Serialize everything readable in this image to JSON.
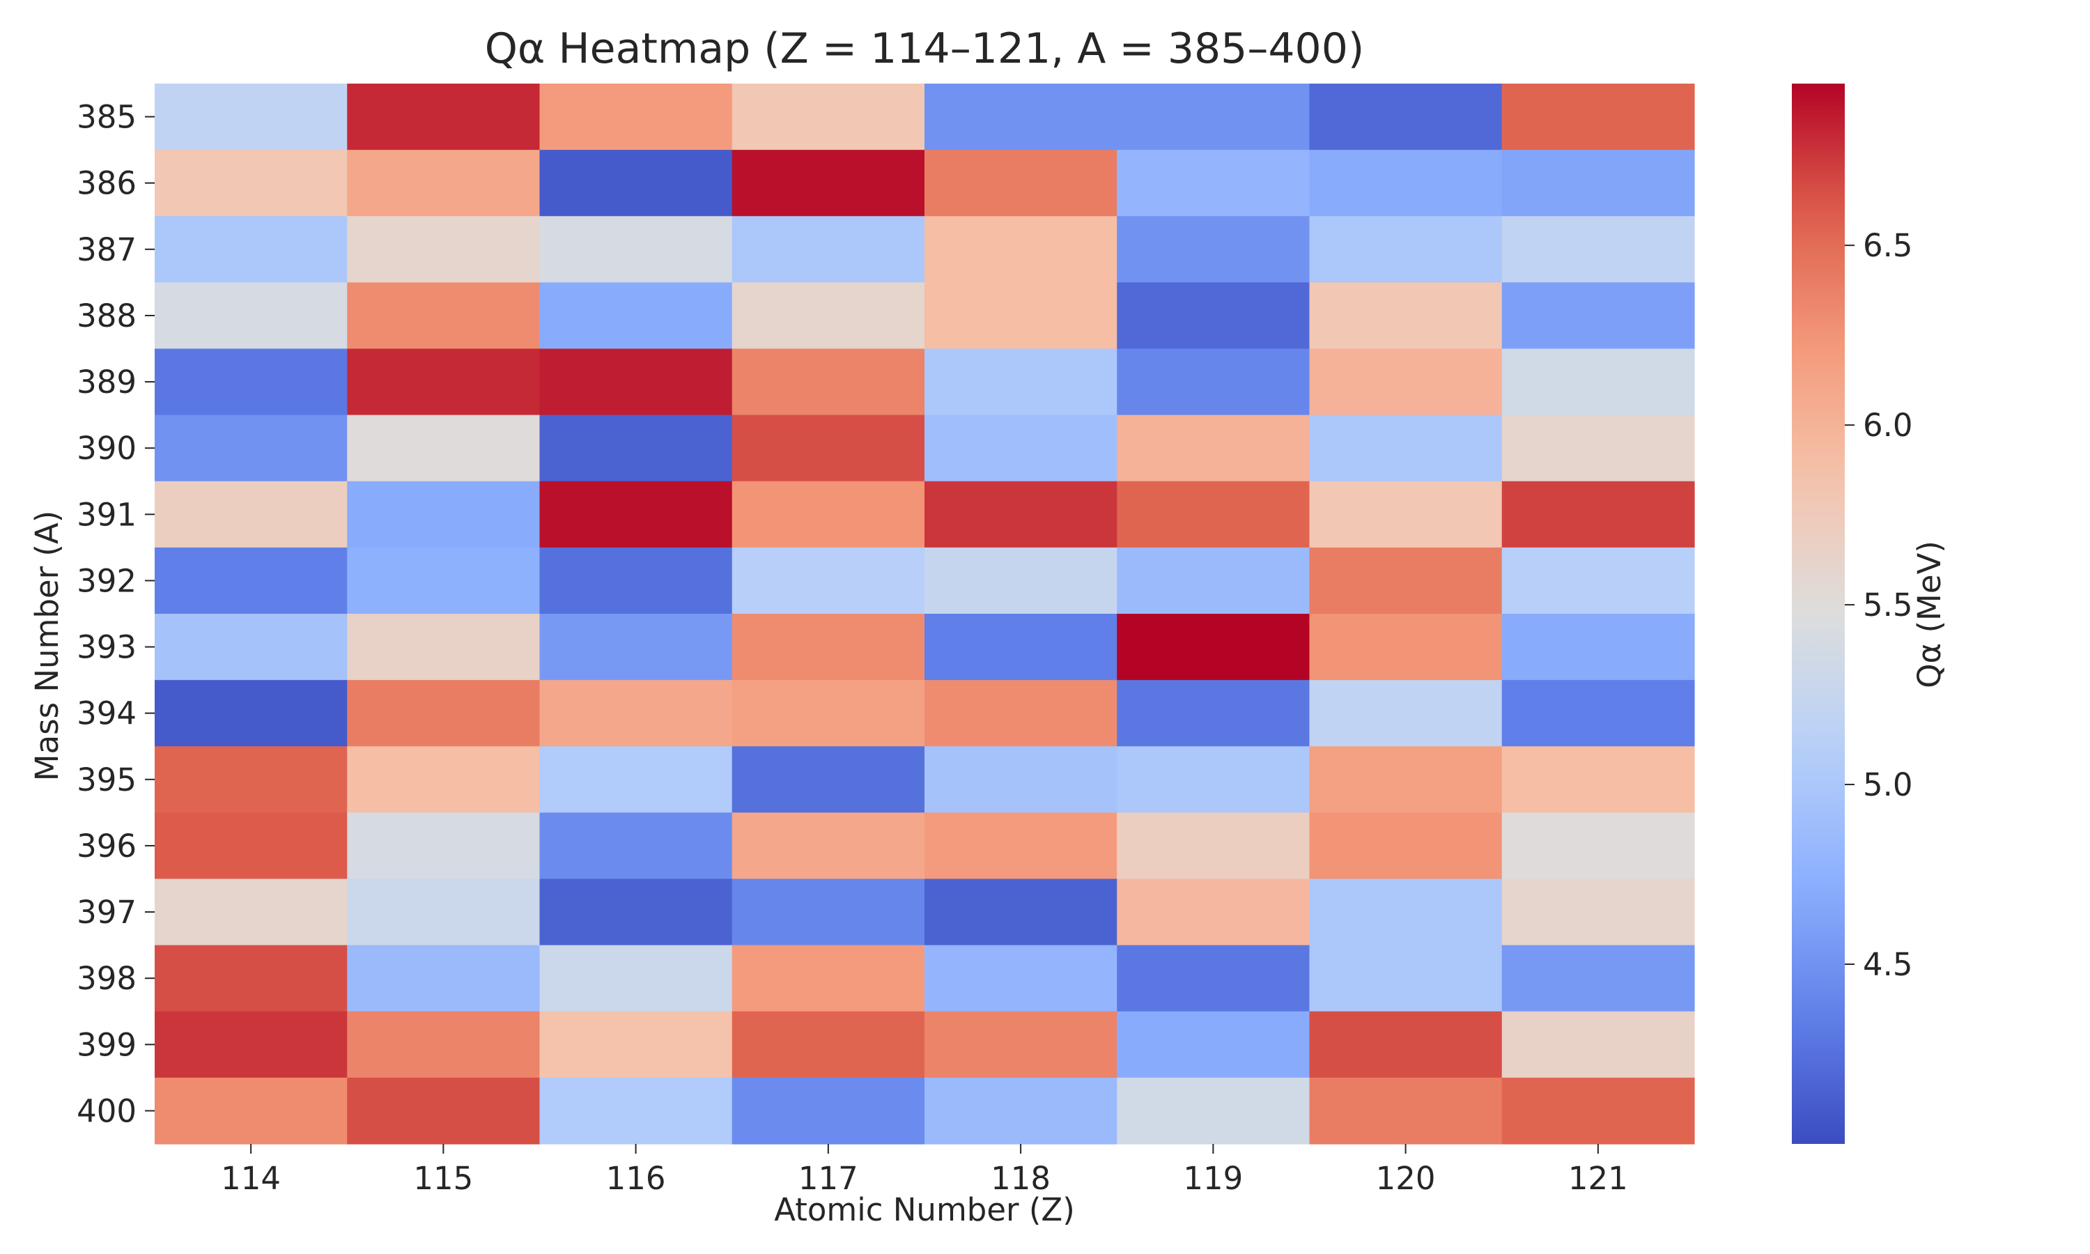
{
  "chart_data": {
    "type": "heatmap",
    "title": "Qα Heatmap (Z = 114–121, A = 385–400)",
    "xlabel": "Atomic Number (Z)",
    "ylabel": "Mass Number (A)",
    "colorbar_label": "Qα (MeV)",
    "colormap": "coolwarm",
    "x_categories": [
      "114",
      "115",
      "116",
      "117",
      "118",
      "119",
      "120",
      "121"
    ],
    "y_categories": [
      "385",
      "386",
      "387",
      "388",
      "389",
      "390",
      "391",
      "392",
      "393",
      "394",
      "395",
      "396",
      "397",
      "398",
      "399",
      "400"
    ],
    "value_range": [
      4.0,
      6.95
    ],
    "colorbar_ticks": [
      "4.5",
      "5.0",
      "5.5",
      "6.0",
      "6.5"
    ],
    "values": [
      [
        5.2,
        6.8,
        6.2,
        5.8,
        4.5,
        4.5,
        4.2,
        6.55
      ],
      [
        5.8,
        6.1,
        4.1,
        6.9,
        6.4,
        4.8,
        4.7,
        4.65
      ],
      [
        5.0,
        5.6,
        5.4,
        5.0,
        5.9,
        4.5,
        5.0,
        5.2
      ],
      [
        5.4,
        6.3,
        4.7,
        5.6,
        5.9,
        4.2,
        5.8,
        4.6
      ],
      [
        4.3,
        6.8,
        6.85,
        6.35,
        5.0,
        4.4,
        6.0,
        5.35
      ],
      [
        4.5,
        5.5,
        4.15,
        6.65,
        4.9,
        6.0,
        5.0,
        5.6
      ],
      [
        5.7,
        4.7,
        6.9,
        6.25,
        6.75,
        6.55,
        5.8,
        6.7
      ],
      [
        4.35,
        4.75,
        4.25,
        5.1,
        5.25,
        4.85,
        6.4,
        5.1
      ],
      [
        4.95,
        5.65,
        4.55,
        6.3,
        4.35,
        6.95,
        6.25,
        4.7
      ],
      [
        4.1,
        6.4,
        6.1,
        6.15,
        6.3,
        4.3,
        5.2,
        4.35
      ],
      [
        6.55,
        5.9,
        5.05,
        4.25,
        4.95,
        5.0,
        6.15,
        5.9
      ],
      [
        6.6,
        5.4,
        4.45,
        6.1,
        6.2,
        5.7,
        6.25,
        5.5
      ],
      [
        5.6,
        5.3,
        4.15,
        4.4,
        4.15,
        5.95,
        5.0,
        5.6
      ],
      [
        6.65,
        4.85,
        5.3,
        6.2,
        4.8,
        4.3,
        5.0,
        4.55
      ],
      [
        6.75,
        6.35,
        5.85,
        6.55,
        6.35,
        4.7,
        6.65,
        5.65
      ],
      [
        6.3,
        6.65,
        5.05,
        4.45,
        4.85,
        5.35,
        6.4,
        6.55
      ]
    ]
  }
}
